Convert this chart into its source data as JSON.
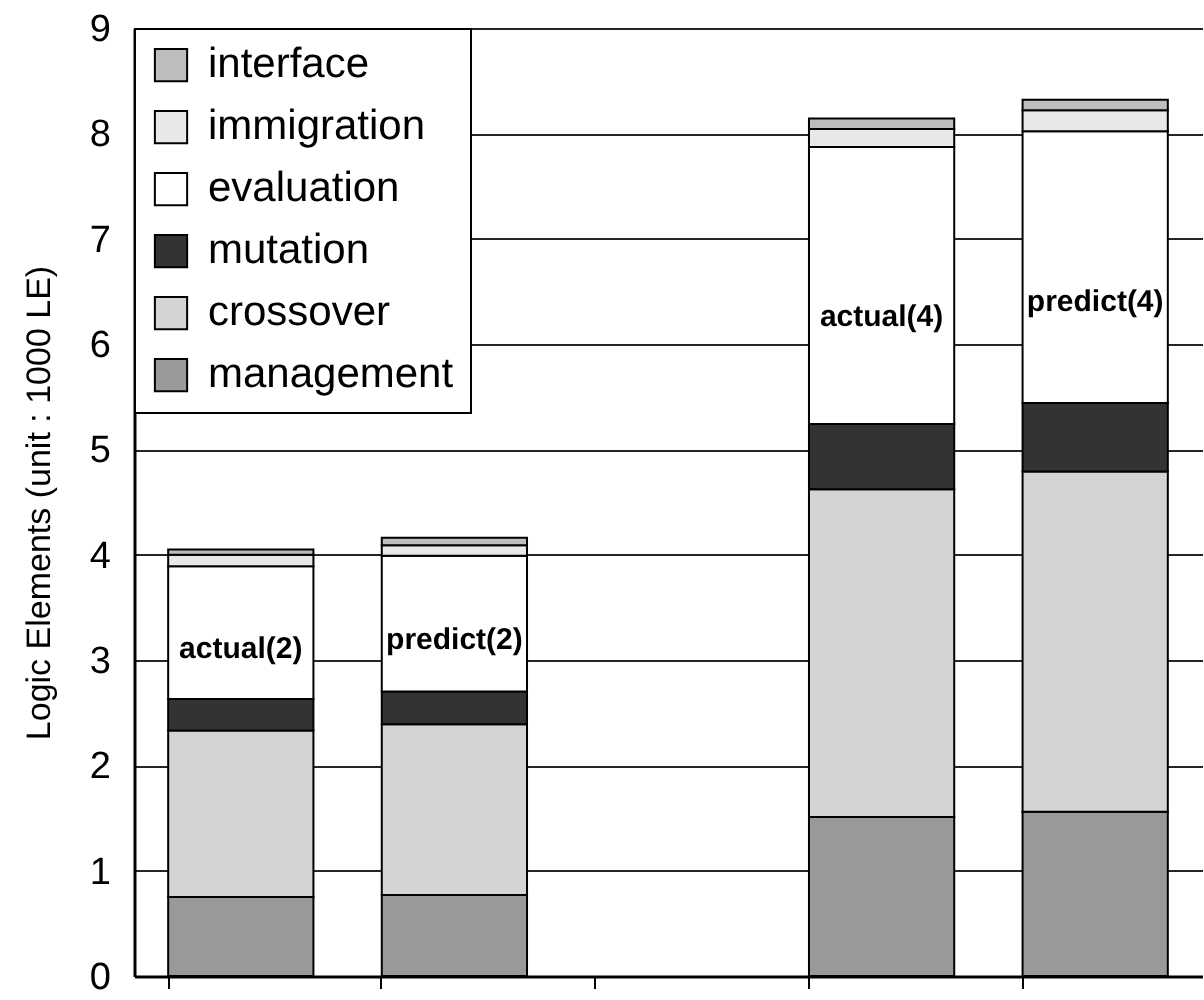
{
  "chart_data": {
    "type": "bar",
    "stacked": true,
    "ylabel": "Logic Elements (unit : 1000 LE)",
    "categories": [
      "actual(2)",
      "predict(2)",
      null,
      "actual(4)",
      "predict(4)"
    ],
    "series": [
      {
        "name": "management",
        "color": "#999999",
        "values": [
          0.75,
          0.77,
          null,
          1.51,
          1.56
        ]
      },
      {
        "name": "crossover",
        "color": "#d4d4d4",
        "values": [
          1.58,
          1.62,
          null,
          3.11,
          3.23
        ]
      },
      {
        "name": "mutation",
        "color": "#333333",
        "values": [
          0.3,
          0.31,
          null,
          0.62,
          0.65
        ]
      },
      {
        "name": "evaluation",
        "color": "#ffffff",
        "values": [
          1.26,
          1.29,
          null,
          2.63,
          2.58
        ]
      },
      {
        "name": "immigration",
        "color": "#e8e8e8",
        "values": [
          0.11,
          0.1,
          null,
          0.17,
          0.2
        ]
      },
      {
        "name": "interface",
        "color": "#bdbdbd",
        "values": [
          0.05,
          0.07,
          null,
          0.1,
          0.1
        ]
      }
    ],
    "ylim": [
      0,
      9
    ],
    "yticks": [
      0,
      1,
      2,
      3,
      4,
      5,
      6,
      7,
      8,
      9
    ],
    "grid": "y",
    "legend": "top left",
    "tick_labels": "y"
  }
}
